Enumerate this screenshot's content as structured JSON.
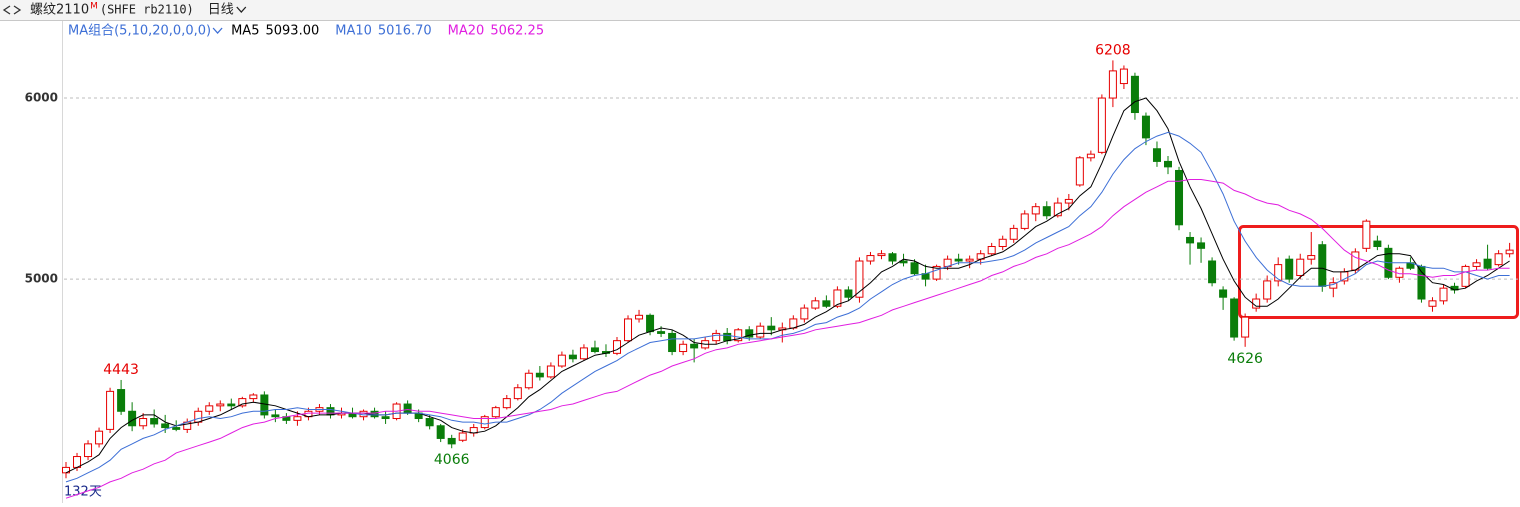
{
  "header": {
    "symbol": "螺纹2110",
    "badge": "M",
    "code": "(SHFE rb2110)",
    "period": "日线"
  },
  "chart_data": {
    "type": "candlestick",
    "indicator": "MA组合(5,10,20,0,0,0)",
    "days_label": "132天",
    "up_color": "#e60000",
    "down_color": "#0a7d0a",
    "ylim": [
      3780,
      6420
    ],
    "yticks": [
      5000,
      6000
    ],
    "grid": true,
    "ohlc": [
      [
        3930,
        3990,
        3900,
        3960
      ],
      [
        3960,
        4040,
        3940,
        4020
      ],
      [
        4020,
        4110,
        4000,
        4090
      ],
      [
        4090,
        4180,
        4070,
        4160
      ],
      [
        4170,
        4400,
        4150,
        4380
      ],
      [
        4390,
        4443,
        4250,
        4270
      ],
      [
        4270,
        4320,
        4160,
        4190
      ],
      [
        4190,
        4260,
        4170,
        4230
      ],
      [
        4230,
        4280,
        4180,
        4200
      ],
      [
        4200,
        4250,
        4150,
        4180
      ],
      [
        4180,
        4220,
        4160,
        4170
      ],
      [
        4170,
        4230,
        4150,
        4210
      ],
      [
        4210,
        4290,
        4190,
        4270
      ],
      [
        4270,
        4320,
        4250,
        4300
      ],
      [
        4300,
        4330,
        4270,
        4310
      ],
      [
        4310,
        4340,
        4280,
        4300
      ],
      [
        4300,
        4350,
        4290,
        4340
      ],
      [
        4340,
        4370,
        4320,
        4360
      ],
      [
        4360,
        4380,
        4230,
        4250
      ],
      [
        4250,
        4280,
        4210,
        4240
      ],
      [
        4240,
        4260,
        4200,
        4220
      ],
      [
        4220,
        4270,
        4190,
        4240
      ],
      [
        4240,
        4290,
        4220,
        4270
      ],
      [
        4270,
        4310,
        4250,
        4290
      ],
      [
        4290,
        4310,
        4230,
        4250
      ],
      [
        4250,
        4290,
        4230,
        4260
      ],
      [
        4260,
        4290,
        4230,
        4240
      ],
      [
        4240,
        4280,
        4220,
        4270
      ],
      [
        4270,
        4290,
        4230,
        4240
      ],
      [
        4240,
        4270,
        4200,
        4230
      ],
      [
        4230,
        4320,
        4220,
        4310
      ],
      [
        4310,
        4330,
        4250,
        4260
      ],
      [
        4260,
        4280,
        4210,
        4230
      ],
      [
        4230,
        4250,
        4170,
        4190
      ],
      [
        4190,
        4200,
        4100,
        4120
      ],
      [
        4120,
        4140,
        4066,
        4090
      ],
      [
        4110,
        4170,
        4100,
        4150
      ],
      [
        4150,
        4200,
        4130,
        4180
      ],
      [
        4180,
        4250,
        4170,
        4240
      ],
      [
        4240,
        4300,
        4230,
        4290
      ],
      [
        4290,
        4360,
        4280,
        4340
      ],
      [
        4340,
        4420,
        4330,
        4400
      ],
      [
        4400,
        4500,
        4390,
        4480
      ],
      [
        4480,
        4520,
        4440,
        4460
      ],
      [
        4460,
        4540,
        4450,
        4520
      ],
      [
        4520,
        4600,
        4510,
        4580
      ],
      [
        4580,
        4610,
        4540,
        4560
      ],
      [
        4560,
        4640,
        4550,
        4620
      ],
      [
        4620,
        4660,
        4590,
        4600
      ],
      [
        4600,
        4640,
        4570,
        4590
      ],
      [
        4590,
        4680,
        4580,
        4660
      ],
      [
        4660,
        4800,
        4650,
        4780
      ],
      [
        4780,
        4830,
        4760,
        4800
      ],
      [
        4800,
        4810,
        4690,
        4710
      ],
      [
        4710,
        4740,
        4680,
        4700
      ],
      [
        4700,
        4720,
        4580,
        4600
      ],
      [
        4600,
        4660,
        4580,
        4640
      ],
      [
        4640,
        4670,
        4540,
        4620
      ],
      [
        4620,
        4680,
        4610,
        4660
      ],
      [
        4660,
        4720,
        4640,
        4700
      ],
      [
        4700,
        4730,
        4640,
        4660
      ],
      [
        4660,
        4730,
        4650,
        4720
      ],
      [
        4720,
        4740,
        4660,
        4680
      ],
      [
        4680,
        4760,
        4670,
        4740
      ],
      [
        4740,
        4790,
        4690,
        4720
      ],
      [
        4720,
        4760,
        4650,
        4730
      ],
      [
        4730,
        4800,
        4720,
        4780
      ],
      [
        4780,
        4860,
        4760,
        4840
      ],
      [
        4840,
        4900,
        4830,
        4880
      ],
      [
        4880,
        4910,
        4840,
        4850
      ],
      [
        4850,
        4960,
        4840,
        4940
      ],
      [
        4940,
        4960,
        4880,
        4900
      ],
      [
        4900,
        5120,
        4870,
        5100
      ],
      [
        5100,
        5150,
        5080,
        5130
      ],
      [
        5130,
        5160,
        5110,
        5140
      ],
      [
        5140,
        5150,
        5080,
        5100
      ],
      [
        5100,
        5140,
        5070,
        5090
      ],
      [
        5090,
        5110,
        5020,
        5030
      ],
      [
        5030,
        5080,
        4960,
        5000
      ],
      [
        5000,
        5080,
        4990,
        5070
      ],
      [
        5070,
        5130,
        5050,
        5110
      ],
      [
        5110,
        5140,
        5080,
        5100
      ],
      [
        5100,
        5130,
        5060,
        5110
      ],
      [
        5110,
        5160,
        5080,
        5140
      ],
      [
        5140,
        5200,
        5130,
        5180
      ],
      [
        5180,
        5240,
        5160,
        5220
      ],
      [
        5220,
        5300,
        5200,
        5280
      ],
      [
        5280,
        5380,
        5270,
        5360
      ],
      [
        5360,
        5420,
        5320,
        5400
      ],
      [
        5400,
        5430,
        5330,
        5350
      ],
      [
        5350,
        5450,
        5340,
        5420
      ],
      [
        5420,
        5470,
        5380,
        5440
      ],
      [
        5520,
        5680,
        5510,
        5670
      ],
      [
        5670,
        5710,
        5650,
        5690
      ],
      [
        5700,
        6020,
        5690,
        6000
      ],
      [
        6000,
        6208,
        5950,
        6150
      ],
      [
        6080,
        6180,
        6050,
        6160
      ],
      [
        6120,
        6140,
        5880,
        5920
      ],
      [
        5900,
        5920,
        5740,
        5780
      ],
      [
        5720,
        5760,
        5620,
        5650
      ],
      [
        5650,
        5680,
        5580,
        5620
      ],
      [
        5600,
        5620,
        5270,
        5300
      ],
      [
        5230,
        5260,
        5080,
        5200
      ],
      [
        5200,
        5230,
        5090,
        5170
      ],
      [
        5100,
        5120,
        4960,
        4980
      ],
      [
        4940,
        4960,
        4830,
        4900
      ],
      [
        4890,
        4900,
        4660,
        4680
      ],
      [
        4680,
        4810,
        4626,
        4790
      ],
      [
        4840,
        4920,
        4820,
        4890
      ],
      [
        4890,
        5020,
        4870,
        4990
      ],
      [
        4990,
        5120,
        4960,
        5080
      ],
      [
        5110,
        5130,
        4980,
        5000
      ],
      [
        5020,
        5140,
        5000,
        5110
      ],
      [
        5110,
        5260,
        5080,
        5130
      ],
      [
        5190,
        5210,
        4930,
        4960
      ],
      [
        4950,
        5010,
        4900,
        4980
      ],
      [
        4990,
        5060,
        4970,
        5040
      ],
      [
        5050,
        5170,
        5030,
        5150
      ],
      [
        5170,
        5330,
        5150,
        5320
      ],
      [
        5210,
        5240,
        5160,
        5180
      ],
      [
        5170,
        5190,
        5000,
        5010
      ],
      [
        5010,
        5070,
        4980,
        5060
      ],
      [
        5090,
        5120,
        5050,
        5060
      ],
      [
        5070,
        5080,
        4870,
        4890
      ],
      [
        4850,
        4900,
        4820,
        4880
      ],
      [
        4880,
        4970,
        4860,
        4950
      ],
      [
        4960,
        4980,
        4920,
        4940
      ],
      [
        4960,
        5080,
        4950,
        5070
      ],
      [
        5070,
        5110,
        5050,
        5090
      ],
      [
        5110,
        5190,
        5050,
        5060
      ],
      [
        5080,
        5160,
        5070,
        5140
      ],
      [
        5140,
        5200,
        5120,
        5160
      ]
    ],
    "series": [
      {
        "name": "MA5",
        "legend_value": "5093.00",
        "color": "#000000",
        "values": [
          3930,
          3960,
          3990,
          4030,
          4120,
          4180,
          4220,
          4250,
          4250,
          4210,
          4190,
          4200,
          4210,
          4230,
          4250,
          4280,
          4310,
          4320,
          4310,
          4300,
          4280,
          4260,
          4240,
          4250,
          4250,
          4260,
          4260,
          4260,
          4250,
          4250,
          4260,
          4260,
          4260,
          4240,
          4220,
          4180,
          4160,
          4150,
          4160,
          4190,
          4240,
          4290,
          4350,
          4390,
          4440,
          4490,
          4520,
          4550,
          4580,
          4590,
          4610,
          4650,
          4690,
          4710,
          4730,
          4720,
          4690,
          4650,
          4640,
          4640,
          4660,
          4670,
          4690,
          4700,
          4700,
          4720,
          4730,
          4750,
          4790,
          4820,
          4860,
          4880,
          4930,
          4980,
          5040,
          5070,
          5110,
          5100,
          5070,
          5060,
          5060,
          5060,
          5080,
          5110,
          5130,
          5150,
          5190,
          5240,
          5290,
          5320,
          5360,
          5390,
          5460,
          5510,
          5640,
          5790,
          5930,
          5980,
          6000,
          5930,
          5830,
          5650,
          5510,
          5390,
          5250,
          5110,
          4990,
          4900,
          4850,
          4850,
          4890,
          4950,
          5010,
          5060,
          5060,
          5040,
          5040,
          5050,
          5090,
          5130,
          5140,
          5140,
          5130,
          5040,
          4980,
          4970,
          4940,
          4950,
          4990,
          5020,
          5060,
          5100
        ]
      },
      {
        "name": "MA10",
        "legend_value": "5016.70",
        "color": "#3d6fd6",
        "values": [
          3880,
          3900,
          3930,
          3960,
          4000,
          4060,
          4090,
          4120,
          4140,
          4170,
          4190,
          4210,
          4230,
          4240,
          4230,
          4240,
          4260,
          4270,
          4270,
          4280,
          4280,
          4290,
          4280,
          4280,
          4280,
          4270,
          4260,
          4250,
          4250,
          4250,
          4260,
          4260,
          4260,
          4250,
          4240,
          4220,
          4210,
          4210,
          4200,
          4210,
          4210,
          4230,
          4250,
          4280,
          4320,
          4370,
          4410,
          4450,
          4490,
          4520,
          4550,
          4590,
          4620,
          4650,
          4660,
          4670,
          4670,
          4670,
          4680,
          4690,
          4690,
          4680,
          4670,
          4670,
          4670,
          4690,
          4700,
          4720,
          4750,
          4760,
          4790,
          4810,
          4840,
          4890,
          4930,
          4970,
          5000,
          5020,
          5030,
          5050,
          5070,
          5090,
          5090,
          5090,
          5100,
          5110,
          5130,
          5160,
          5200,
          5230,
          5260,
          5290,
          5350,
          5400,
          5480,
          5580,
          5660,
          5720,
          5760,
          5790,
          5810,
          5790,
          5750,
          5700,
          5590,
          5470,
          5320,
          5210,
          5120,
          5050,
          5000,
          4970,
          4960,
          4960,
          4960,
          4970,
          5000,
          5030,
          5080,
          5100,
          5090,
          5090,
          5090,
          5070,
          5060,
          5060,
          5040,
          5040,
          5020,
          5000,
          5020,
          5020
        ]
      },
      {
        "name": "MA20",
        "legend_value": "5062.25",
        "color": "#e01ee0",
        "values": [
          3790,
          3810,
          3830,
          3850,
          3880,
          3900,
          3930,
          3950,
          3980,
          4000,
          4040,
          4060,
          4080,
          4100,
          4120,
          4150,
          4180,
          4200,
          4210,
          4230,
          4240,
          4250,
          4260,
          4260,
          4260,
          4260,
          4260,
          4260,
          4260,
          4270,
          4270,
          4280,
          4270,
          4270,
          4260,
          4250,
          4240,
          4230,
          4230,
          4230,
          4240,
          4250,
          4260,
          4270,
          4280,
          4300,
          4310,
          4330,
          4350,
          4370,
          4380,
          4410,
          4440,
          4470,
          4490,
          4520,
          4540,
          4560,
          4590,
          4610,
          4620,
          4640,
          4650,
          4660,
          4670,
          4680,
          4690,
          4700,
          4720,
          4730,
          4740,
          4750,
          4760,
          4780,
          4800,
          4830,
          4850,
          4870,
          4890,
          4910,
          4930,
          4950,
          4970,
          4990,
          5020,
          5040,
          5070,
          5090,
          5120,
          5140,
          5170,
          5190,
          5220,
          5250,
          5290,
          5350,
          5400,
          5440,
          5480,
          5510,
          5540,
          5540,
          5550,
          5550,
          5540,
          5530,
          5490,
          5470,
          5440,
          5420,
          5410,
          5380,
          5360,
          5330,
          5280,
          5220,
          5160,
          5120,
          5100,
          5080,
          5050,
          5030,
          5030,
          5020,
          5010,
          5020,
          5020,
          5040,
          5050,
          5050,
          5060,
          5060
        ]
      }
    ],
    "annotations": [
      {
        "index": 5,
        "value": 4443,
        "color": "#e60000",
        "position": "above"
      },
      {
        "index": 35,
        "value": 4066,
        "color": "#0a7d0a",
        "position": "below"
      },
      {
        "index": 95,
        "value": 6208,
        "color": "#e60000",
        "position": "above"
      },
      {
        "index": 107,
        "value": 4626,
        "color": "#0a7d0a",
        "position": "below"
      }
    ]
  }
}
